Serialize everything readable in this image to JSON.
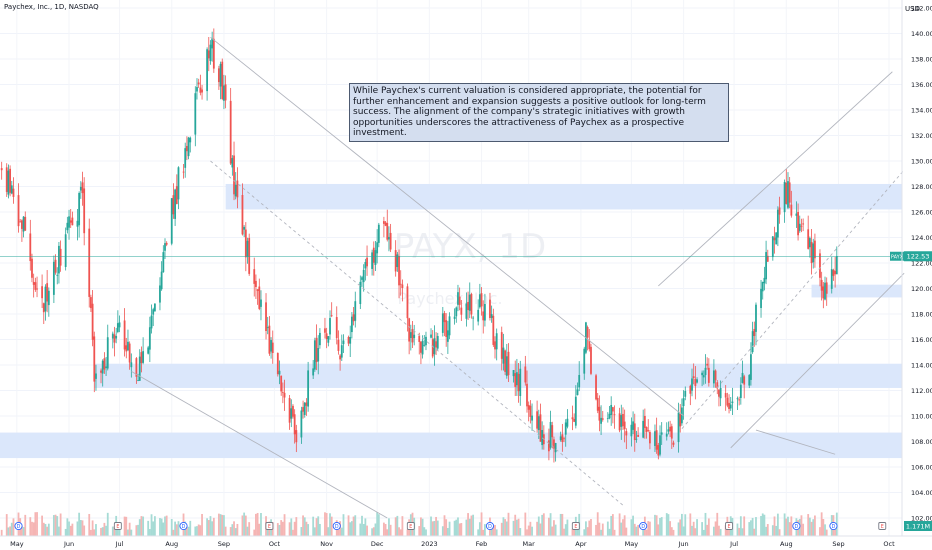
{
  "header": {
    "symbol_title": "Paychex, Inc., 1D, NASDAQ",
    "currency": "USD"
  },
  "note": {
    "text": "While Paychex's current valuation is considered appropriate, the potential for further enhancement and expansion suggests a positive outlook for long-term success. The alignment of the company's strategic initiatives with growth opportunities underscores the attractiveness of Paychex as a prospective investment."
  },
  "watermark": {
    "ticker": "PAYX, 1D",
    "name": "Paychex, Inc."
  },
  "colors": {
    "up": "#26a69a",
    "down": "#ef5350",
    "zone": "#dbe7fb",
    "trendline": "#b2b5be",
    "price_line": "#26a69a",
    "note_bg": "#d4deef"
  },
  "chart_data": {
    "type": "candlestick",
    "title": "Paychex, Inc., 1D, NASDAQ",
    "y_axis": {
      "min": 102,
      "max": 142,
      "ticks": [
        "142.00",
        "140.00",
        "138.00",
        "136.00",
        "134.00",
        "132.00",
        "130.00",
        "128.00",
        "126.00",
        "124.00",
        "122.00",
        "120.00",
        "118.00",
        "116.00",
        "114.00",
        "112.00",
        "110.00",
        "108.00",
        "106.00",
        "104.00",
        "102.00"
      ],
      "side": "right"
    },
    "x_axis": {
      "ticks": [
        "May",
        "Jun",
        "Jul",
        "Aug",
        "Sep",
        "Oct",
        "Nov",
        "Dec",
        "2023",
        "Feb",
        "Mar",
        "Apr",
        "May",
        "Jun",
        "Jul",
        "Aug",
        "Sep",
        "Oct"
      ]
    },
    "last_price": {
      "label": "PAYX",
      "value": "122.53",
      "y": 122.53
    },
    "volume_label": "1.171M",
    "zones": [
      {
        "y_low": 126.2,
        "y_high": 128.2,
        "x_start": "2022-09-02",
        "x_end": "2023-10-25"
      },
      {
        "y_low": 119.3,
        "y_high": 120.3,
        "x_start": "2023-08-16",
        "x_end": "2023-10-25"
      },
      {
        "y_low": 112.2,
        "y_high": 114.1,
        "x_start": "2022-06-16",
        "x_end": "2023-10-25"
      },
      {
        "y_low": 106.7,
        "y_high": 108.7,
        "x_start": "2022-04-21",
        "x_end": "2023-10-25"
      }
    ],
    "trendlines": [
      {
        "from": [
          "2022-08-24",
          139.7
        ],
        "to": [
          "2023-06-01",
          110.0
        ],
        "style": "solid"
      },
      {
        "from": [
          "2022-08-24",
          130.0
        ],
        "to": [
          "2023-04-26",
          103.0
        ],
        "style": "dashed"
      },
      {
        "from": [
          "2022-07-08",
          113.5
        ],
        "to": [
          "2022-12-07",
          102.0
        ],
        "style": "solid"
      },
      {
        "from": [
          "2023-05-17",
          120.2
        ],
        "to": [
          "2023-10-03",
          137.0
        ],
        "style": "solid"
      },
      {
        "from": [
          "2023-05-31",
          109.0
        ],
        "to": [
          "2023-10-10",
          129.3
        ],
        "style": "dashed"
      },
      {
        "from": [
          "2023-06-29",
          107.5
        ],
        "to": [
          "2023-10-10",
          121.2
        ],
        "style": "solid"
      },
      {
        "from": [
          "2023-07-14",
          108.9
        ],
        "to": [
          "2023-08-30",
          107.0
        ],
        "style": "solid"
      }
    ],
    "anchors": [
      [
        "2022-04-22",
        129.5
      ],
      [
        "2022-05-02",
        126.0
      ],
      [
        "2022-05-16",
        118.8
      ],
      [
        "2022-05-26",
        122.5
      ],
      [
        "2022-06-09",
        127.3
      ],
      [
        "2022-06-16",
        113.4
      ],
      [
        "2022-06-30",
        116.5
      ],
      [
        "2022-07-14",
        113.5
      ],
      [
        "2022-08-01",
        126.0
      ],
      [
        "2022-08-24",
        139.4
      ],
      [
        "2022-09-01",
        135.5
      ],
      [
        "2022-09-09",
        126.0
      ],
      [
        "2022-09-30",
        115.0
      ],
      [
        "2022-10-14",
        108.2
      ],
      [
        "2022-10-25",
        115.0
      ],
      [
        "2022-11-03",
        117.6
      ],
      [
        "2022-11-10",
        114.5
      ],
      [
        "2022-11-28",
        122.8
      ],
      [
        "2022-12-06",
        124.8
      ],
      [
        "2022-12-13",
        122.0
      ],
      [
        "2022-12-19",
        116.5
      ],
      [
        "2023-01-03",
        115.8
      ],
      [
        "2023-01-20",
        119.0
      ],
      [
        "2023-02-03",
        118.5
      ],
      [
        "2023-02-14",
        114.5
      ],
      [
        "2023-02-27",
        112.2
      ],
      [
        "2023-03-10",
        108.2
      ],
      [
        "2023-03-20",
        108.8
      ],
      [
        "2023-03-28",
        110.5
      ],
      [
        "2023-04-04",
        116.2
      ],
      [
        "2023-04-10",
        110.2
      ],
      [
        "2023-04-27",
        109.5
      ],
      [
        "2023-05-15",
        108.0
      ],
      [
        "2023-05-25",
        108.0
      ],
      [
        "2023-06-01",
        110.5
      ],
      [
        "2023-06-09",
        113.3
      ],
      [
        "2023-06-21",
        112.5
      ],
      [
        "2023-06-30",
        110.5
      ],
      [
        "2023-07-10",
        113.6
      ],
      [
        "2023-07-14",
        118.6
      ],
      [
        "2023-07-24",
        124.0
      ],
      [
        "2023-08-01",
        127.8
      ],
      [
        "2023-08-07",
        124.8
      ],
      [
        "2023-08-14",
        123.8
      ],
      [
        "2023-08-22",
        119.9
      ],
      [
        "2023-08-31",
        122.53
      ]
    ],
    "events": [
      {
        "date": "2022-05-02",
        "label": "D"
      },
      {
        "date": "2022-06-30",
        "label": "E"
      },
      {
        "date": "2022-08-08",
        "label": "D"
      },
      {
        "date": "2022-09-28",
        "label": "E"
      },
      {
        "date": "2022-11-07",
        "label": "D"
      },
      {
        "date": "2022-12-21",
        "label": "E"
      },
      {
        "date": "2023-02-06",
        "label": "D"
      },
      {
        "date": "2023-03-29",
        "label": "E"
      },
      {
        "date": "2023-05-08",
        "label": "D"
      },
      {
        "date": "2023-06-28",
        "label": "E"
      },
      {
        "date": "2023-08-07",
        "label": "D"
      },
      {
        "date": "2023-08-29",
        "label": "D"
      },
      {
        "date": "2023-09-27",
        "label": "E"
      }
    ]
  }
}
